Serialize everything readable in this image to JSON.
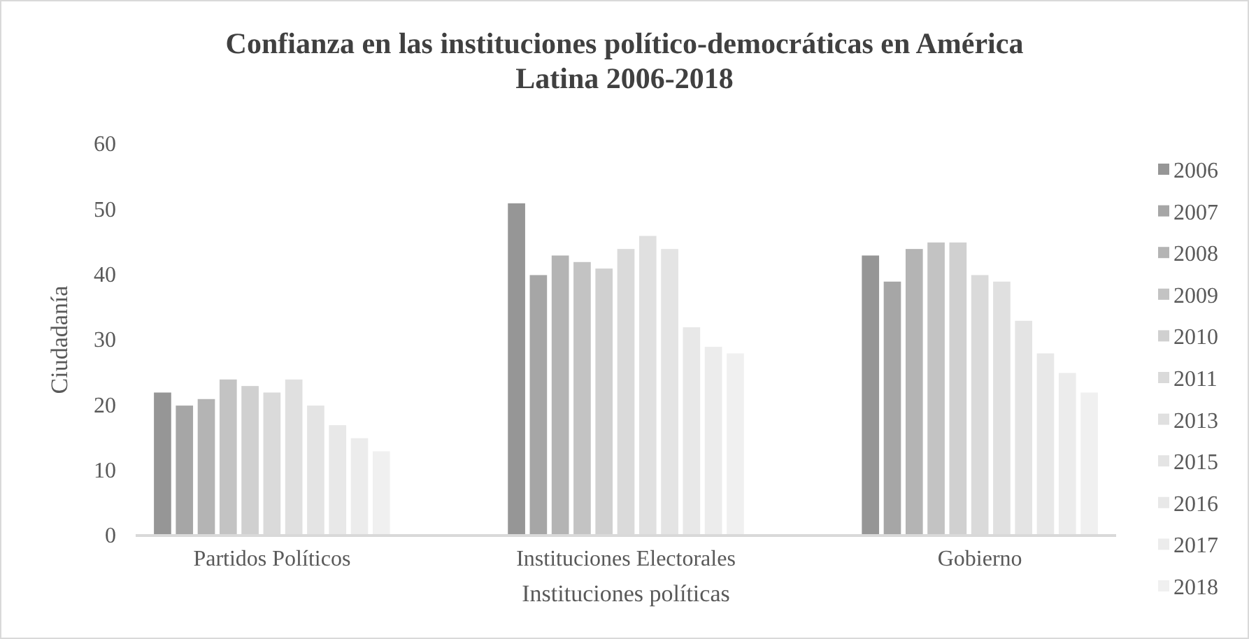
{
  "chart_data": {
    "type": "bar",
    "title": "Confianza en las instituciones político-democráticas en América Latina 2006-2018",
    "xlabel": "Instituciones políticas",
    "ylabel": "Ciudadanía",
    "categories": [
      "Partidos Políticos",
      "Instituciones Electorales",
      "Gobierno"
    ],
    "series": [
      {
        "name": "2006",
        "color": "#969696",
        "values": [
          22,
          51,
          43
        ]
      },
      {
        "name": "2007",
        "color": "#a6a6a6",
        "values": [
          20,
          40,
          39
        ]
      },
      {
        "name": "2008",
        "color": "#b4b4b4",
        "values": [
          21,
          43,
          44
        ]
      },
      {
        "name": "2009",
        "color": "#c3c3c3",
        "values": [
          24,
          42,
          45
        ]
      },
      {
        "name": "2010",
        "color": "#d0d0d0",
        "values": [
          23,
          41,
          45
        ]
      },
      {
        "name": "2011",
        "color": "#dadada",
        "values": [
          22,
          44,
          40
        ]
      },
      {
        "name": "2013",
        "color": "#e0e0e0",
        "values": [
          24,
          46,
          39
        ]
      },
      {
        "name": "2015",
        "color": "#e4e4e4",
        "values": [
          20,
          44,
          33
        ]
      },
      {
        "name": "2016",
        "color": "#e8e8e8",
        "values": [
          17,
          32,
          28
        ]
      },
      {
        "name": "2017",
        "color": "#ececec",
        "values": [
          15,
          29,
          25
        ]
      },
      {
        "name": "2018",
        "color": "#f0f0f0",
        "values": [
          13,
          28,
          22
        ]
      }
    ],
    "ylim": [
      0,
      60
    ],
    "yticks": [
      0,
      10,
      20,
      30,
      40,
      50,
      60
    ],
    "grid": false,
    "legend": "right"
  }
}
